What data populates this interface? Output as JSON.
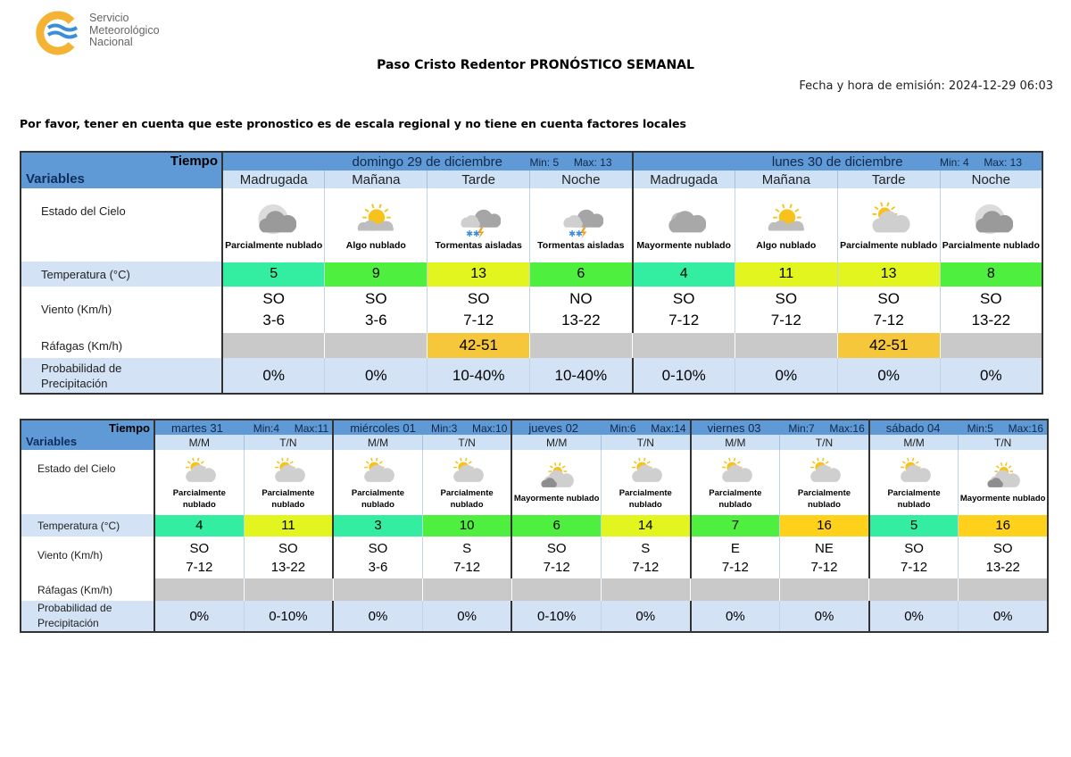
{
  "header": {
    "logo_text": [
      "Servicio",
      "Meteorológico",
      "Nacional"
    ],
    "title": "Paso Cristo Redentor PRONÓSTICO SEMANAL",
    "emission": "Fecha y hora de emisión: 2024-12-29 06:03",
    "notice": "Por favor, tener en cuenta que este pronostico es de escala regional y no tiene en cuenta factores locales"
  },
  "colors": {
    "header": "#5f9ad6",
    "subheader": "#cfe1f4",
    "gust_gray": "#c9c9c9",
    "gust_alert": "#f6c63b"
  },
  "labels": {
    "tiempo": "Tiempo",
    "variables": "Variables",
    "sky": "Estado del Cielo",
    "temp": "Temperatura (°C)",
    "wind": "Viento (Km/h)",
    "gust": "Ráfagas (Km/h)",
    "prob": [
      "Probabilidad de",
      "Precipitación"
    ]
  },
  "table1": {
    "days": [
      {
        "name": "domingo 29 de diciembre",
        "min": "Min:  5",
        "max": "Max:  13"
      },
      {
        "name": "lunes 30 de diciembre",
        "min": "Min:  4",
        "max": "Max:  13"
      }
    ],
    "periods": [
      {
        "period": "Madrugada",
        "icon": "moon-cloud-icon",
        "sky": "Parcialmente nublado",
        "temp": "5",
        "temp_color": "#33eea0",
        "dir": "SO",
        "speed": "3-6",
        "gust": "",
        "prob": "0%"
      },
      {
        "period": "Mañana",
        "icon": "sun-cloud-icon",
        "sky": "Algo nublado",
        "temp": "9",
        "temp_color": "#4fef3f",
        "dir": "SO",
        "speed": "3-6",
        "gust": "",
        "prob": "0%"
      },
      {
        "period": "Tarde",
        "icon": "thunderstorm-icon",
        "sky": "Tormentas aisladas",
        "temp": "13",
        "temp_color": "#e3f51f",
        "dir": "SO",
        "speed": "7-12",
        "gust": "42-51",
        "prob": "10-40%"
      },
      {
        "period": "Noche",
        "icon": "thunderstorm-icon",
        "sky": "Tormentas aisladas",
        "temp": "6",
        "temp_color": "#4fef3f",
        "dir": "NO",
        "speed": "13-22",
        "gust": "",
        "prob": "10-40%"
      },
      {
        "period": "Madrugada",
        "icon": "moon-cloudy-icon",
        "sky": "Mayormente nublado",
        "temp": "4",
        "temp_color": "#33eea0",
        "dir": "SO",
        "speed": "7-12",
        "gust": "",
        "prob": "0-10%"
      },
      {
        "period": "Mañana",
        "icon": "sun-cloud-icon",
        "sky": "Algo nublado",
        "temp": "11",
        "temp_color": "#e3f51f",
        "dir": "SO",
        "speed": "7-12",
        "gust": "",
        "prob": "0%"
      },
      {
        "period": "Tarde",
        "icon": "partly-cloudy-icon",
        "sky": "Parcialmente nublado",
        "temp": "13",
        "temp_color": "#e3f51f",
        "dir": "SO",
        "speed": "7-12",
        "gust": "42-51",
        "prob": "0%"
      },
      {
        "period": "Noche",
        "icon": "moon-cloud-icon",
        "sky": "Parcialmente nublado",
        "temp": "8",
        "temp_color": "#4fef3f",
        "dir": "SO",
        "speed": "13-22",
        "gust": "",
        "prob": "0%"
      }
    ]
  },
  "table2": {
    "days": [
      {
        "name": "martes 31",
        "min": "Min:4",
        "max": "Max:11"
      },
      {
        "name": "miércoles 01",
        "min": "Min:3",
        "max": "Max:10"
      },
      {
        "name": "jueves 02",
        "min": "Min:6",
        "max": "Max:14"
      },
      {
        "name": "viernes 03",
        "min": "Min:7",
        "max": "Max:16"
      },
      {
        "name": "sábado 04",
        "min": "Min:5",
        "max": "Max:16"
      }
    ],
    "periods": [
      {
        "period": "M/M",
        "icon": "partly-cloudy-icon",
        "sky": "Parcialmente nublado",
        "temp": "4",
        "temp_color": "#33eea0",
        "dir": "SO",
        "speed": "7-12",
        "gust": "",
        "prob": "0%"
      },
      {
        "period": "T/N",
        "icon": "partly-cloudy-icon",
        "sky": "Parcialmente nublado",
        "temp": "11",
        "temp_color": "#e3f51f",
        "dir": "SO",
        "speed": "13-22",
        "gust": "",
        "prob": "0-10%"
      },
      {
        "period": "M/M",
        "icon": "partly-cloudy-icon",
        "sky": "Parcialmente nublado",
        "temp": "3",
        "temp_color": "#33eea0",
        "dir": "SO",
        "speed": "3-6",
        "gust": "",
        "prob": "0%"
      },
      {
        "period": "T/N",
        "icon": "partly-cloudy-icon",
        "sky": "Parcialmente nublado",
        "temp": "10",
        "temp_color": "#4fef3f",
        "dir": "S",
        "speed": "7-12",
        "gust": "",
        "prob": "0%"
      },
      {
        "period": "M/M",
        "icon": "mostly-cloudy-icon",
        "sky": "Mayormente nublado",
        "temp": "6",
        "temp_color": "#4fef3f",
        "dir": "SO",
        "speed": "7-12",
        "gust": "",
        "prob": "0-10%"
      },
      {
        "period": "T/N",
        "icon": "partly-cloudy-icon",
        "sky": "Parcialmente nublado",
        "temp": "14",
        "temp_color": "#e3f51f",
        "dir": "S",
        "speed": "7-12",
        "gust": "",
        "prob": "0%"
      },
      {
        "period": "M/M",
        "icon": "partly-cloudy-icon",
        "sky": "Parcialmente nublado",
        "temp": "7",
        "temp_color": "#4fef3f",
        "dir": "E",
        "speed": "7-12",
        "gust": "",
        "prob": "0%"
      },
      {
        "period": "T/N",
        "icon": "partly-cloudy-icon",
        "sky": "Parcialmente nublado",
        "temp": "16",
        "temp_color": "#ffd11a",
        "dir": "NE",
        "speed": "7-12",
        "gust": "",
        "prob": "0%"
      },
      {
        "period": "M/M",
        "icon": "partly-cloudy-icon",
        "sky": "Parcialmente nublado",
        "temp": "5",
        "temp_color": "#33eea0",
        "dir": "SO",
        "speed": "7-12",
        "gust": "",
        "prob": "0%"
      },
      {
        "period": "T/N",
        "icon": "mostly-cloudy-icon",
        "sky": "Mayormente nublado",
        "temp": "16",
        "temp_color": "#ffd11a",
        "dir": "SO",
        "speed": "13-22",
        "gust": "",
        "prob": "0%"
      }
    ]
  }
}
